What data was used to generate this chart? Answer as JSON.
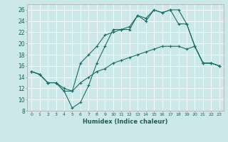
{
  "xlabel": "Humidex (Indice chaleur)",
  "background_color": "#cce8e8",
  "grid_color": "#ffffff",
  "line_color": "#1a6e6a",
  "xlim": [
    -0.5,
    23.5
  ],
  "ylim": [
    8,
    27
  ],
  "xticks": [
    0,
    1,
    2,
    3,
    4,
    5,
    6,
    7,
    8,
    9,
    10,
    11,
    12,
    13,
    14,
    15,
    16,
    17,
    18,
    19,
    20,
    21,
    22,
    23
  ],
  "yticks": [
    8,
    10,
    12,
    14,
    16,
    18,
    20,
    22,
    24,
    26
  ],
  "line1_x": [
    0,
    1,
    2,
    3,
    4,
    5,
    6,
    7,
    8,
    9,
    10,
    11,
    12,
    13,
    14,
    15,
    16,
    17,
    18,
    19,
    20,
    21,
    22,
    23
  ],
  "line1_y": [
    15.0,
    14.5,
    13.0,
    13.0,
    11.5,
    8.5,
    9.5,
    12.5,
    16.5,
    19.5,
    22.5,
    22.5,
    22.5,
    25.0,
    24.5,
    26.0,
    25.5,
    26.0,
    23.5,
    23.5,
    19.5,
    16.5,
    16.5,
    16.0
  ],
  "line2_x": [
    0,
    1,
    2,
    3,
    4,
    5,
    6,
    7,
    8,
    9,
    10,
    11,
    12,
    13,
    14,
    15,
    16,
    17,
    18,
    19,
    20,
    21,
    22,
    23
  ],
  "line2_y": [
    15.0,
    14.5,
    13.0,
    13.0,
    11.5,
    11.5,
    16.5,
    18.0,
    19.5,
    21.5,
    22.0,
    22.5,
    23.0,
    25.0,
    24.0,
    26.0,
    25.5,
    26.0,
    26.0,
    23.5,
    19.5,
    16.5,
    16.5,
    16.0
  ],
  "line3_x": [
    0,
    1,
    2,
    3,
    4,
    5,
    6,
    7,
    8,
    9,
    10,
    11,
    12,
    13,
    14,
    15,
    16,
    17,
    18,
    19,
    20,
    21,
    22,
    23
  ],
  "line3_y": [
    15.0,
    14.5,
    13.0,
    13.0,
    12.0,
    11.5,
    13.0,
    14.0,
    15.0,
    15.5,
    16.5,
    17.0,
    17.5,
    18.0,
    18.5,
    19.0,
    19.5,
    19.5,
    19.5,
    19.0,
    19.5,
    16.5,
    16.5,
    16.0
  ]
}
